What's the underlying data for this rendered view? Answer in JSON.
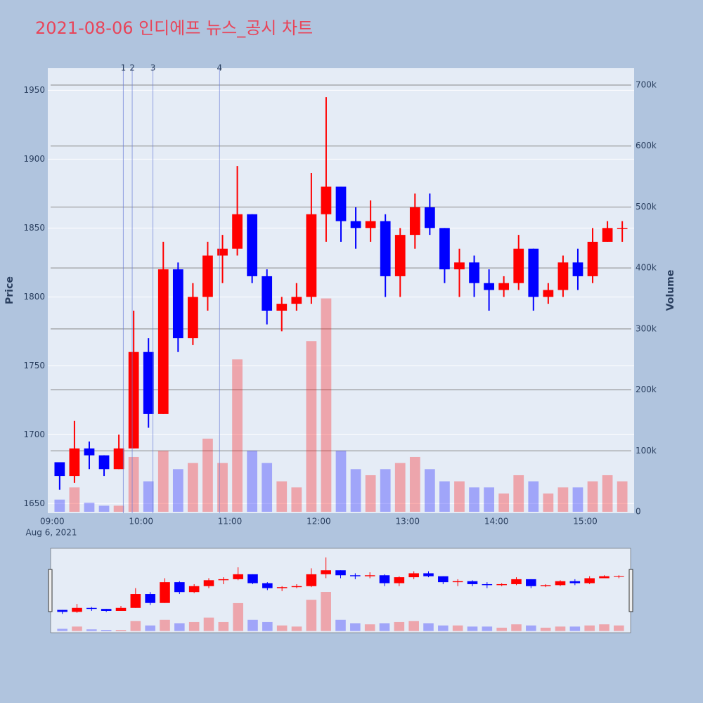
{
  "chart_data": {
    "type": "candlestick",
    "title": "2021-08-06 인디에프 뉴스_공시 차트",
    "y_label": "Price",
    "y2_label": "Volume",
    "x_date_label": "Aug 6, 2021",
    "increasing_color": "#ff0000",
    "decreasing_color": "#0000ff",
    "x": [
      "09:00",
      "09:10",
      "09:20",
      "09:30",
      "09:40",
      "09:50",
      "10:00",
      "10:10",
      "10:20",
      "10:30",
      "10:40",
      "10:50",
      "11:00",
      "11:10",
      "11:20",
      "11:30",
      "11:40",
      "11:50",
      "12:00",
      "12:10",
      "12:20",
      "12:30",
      "12:40",
      "12:50",
      "13:00",
      "13:10",
      "13:20",
      "13:30",
      "13:40",
      "13:50",
      "14:00",
      "14:10",
      "14:20",
      "14:30",
      "14:40",
      "14:50",
      "15:00",
      "15:10",
      "15:20"
    ],
    "open": [
      1680,
      1670,
      1690,
      1685,
      1675,
      1690,
      1760,
      1715,
      1820,
      1770,
      1800,
      1830,
      1835,
      1860,
      1815,
      1790,
      1795,
      1800,
      1860,
      1880,
      1855,
      1850,
      1855,
      1815,
      1845,
      1865,
      1850,
      1820,
      1825,
      1810,
      1805,
      1810,
      1835,
      1800,
      1805,
      1825,
      1815,
      1840,
      1850
    ],
    "high": [
      1680,
      1710,
      1695,
      1685,
      1700,
      1790,
      1770,
      1840,
      1825,
      1810,
      1840,
      1845,
      1895,
      1860,
      1820,
      1800,
      1810,
      1890,
      1945,
      1880,
      1865,
      1870,
      1860,
      1850,
      1875,
      1875,
      1850,
      1835,
      1830,
      1820,
      1815,
      1845,
      1835,
      1810,
      1830,
      1835,
      1850,
      1855,
      1855
    ],
    "low": [
      1660,
      1665,
      1675,
      1670,
      1675,
      1690,
      1705,
      1715,
      1760,
      1765,
      1790,
      1810,
      1830,
      1810,
      1780,
      1775,
      1790,
      1795,
      1840,
      1840,
      1835,
      1840,
      1800,
      1800,
      1835,
      1845,
      1810,
      1800,
      1800,
      1790,
      1800,
      1805,
      1790,
      1795,
      1800,
      1805,
      1810,
      1840,
      1840
    ],
    "close": [
      1670,
      1690,
      1685,
      1675,
      1690,
      1760,
      1715,
      1820,
      1770,
      1800,
      1830,
      1835,
      1860,
      1815,
      1790,
      1795,
      1800,
      1860,
      1880,
      1855,
      1850,
      1855,
      1815,
      1845,
      1865,
      1850,
      1820,
      1825,
      1810,
      1805,
      1810,
      1835,
      1800,
      1805,
      1825,
      1815,
      1840,
      1850,
      1850
    ],
    "volume": [
      20000,
      40000,
      15000,
      10000,
      10000,
      90000,
      50000,
      100000,
      70000,
      80000,
      120000,
      80000,
      250000,
      100000,
      80000,
      50000,
      40000,
      280000,
      350000,
      100000,
      70000,
      60000,
      70000,
      80000,
      90000,
      70000,
      50000,
      50000,
      40000,
      40000,
      30000,
      60000,
      50000,
      30000,
      40000,
      40000,
      50000,
      60000,
      50000
    ],
    "xlim": [
      "08:57",
      "15:33"
    ],
    "xticks": [
      "09:00",
      "10:00",
      "11:00",
      "12:00",
      "13:00",
      "14:00",
      "15:00"
    ],
    "ylim": [
      1643,
      1966
    ],
    "yticks": [
      1650,
      1700,
      1750,
      1800,
      1850,
      1900,
      1950
    ],
    "y2lim": [
      -2300,
      727700
    ],
    "y2ticks": [
      0,
      {
        "value": 100000,
        "label": "100k"
      },
      {
        "value": 200000,
        "label": "200k"
      },
      {
        "value": 300000,
        "label": "300k"
      },
      {
        "value": 400000,
        "label": "400k"
      },
      {
        "value": 500000,
        "label": "500k"
      },
      {
        "value": 600000,
        "label": "600k"
      },
      {
        "value": 700000,
        "label": "700k"
      }
    ],
    "annotations": [
      {
        "label": "1",
        "x": "09:48"
      },
      {
        "label": "2",
        "x": "09:54"
      },
      {
        "label": "3",
        "x": "10:08"
      },
      {
        "label": "4",
        "x": "10:53"
      }
    ]
  }
}
